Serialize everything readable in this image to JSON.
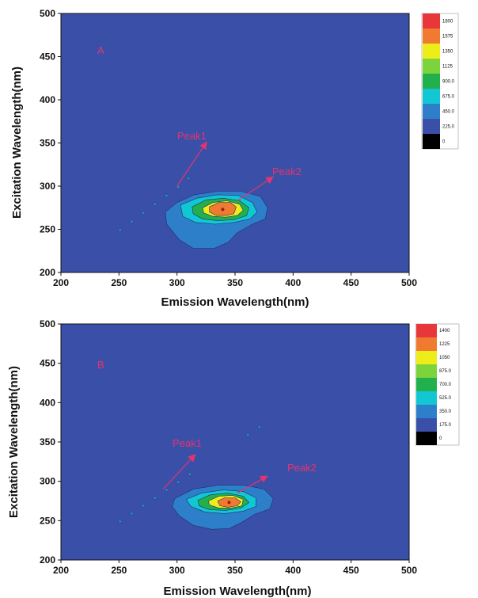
{
  "chart_data": [
    {
      "type": "heatmap",
      "panel_label": "A",
      "xlabel": "Emission Wavelength(nm)",
      "ylabel": "Excitation Wavelength(nm)",
      "xlim": [
        200,
        500
      ],
      "ylim": [
        200,
        500
      ],
      "x_ticks": [
        "200",
        "250",
        "300",
        "350",
        "400",
        "450",
        "500"
      ],
      "y_ticks": [
        "200",
        "250",
        "300",
        "350",
        "400",
        "450",
        "500"
      ],
      "legend_levels": [
        "1800",
        "1575",
        "1350",
        "1125",
        "900.0",
        "675.0",
        "450.0",
        "225.0",
        "0"
      ],
      "legend_placement": "right",
      "peaks": [
        {
          "label": "Peak1",
          "arrow_from": [
            325,
            350
          ],
          "arrow_to": [
            300,
            300
          ]
        },
        {
          "label": "Peak2",
          "arrow_from": [
            382,
            310
          ],
          "arrow_to": [
            352,
            283
          ]
        }
      ],
      "contours": [
        {
          "level": 225,
          "color": "#2e7fc9",
          "points": [
            [
              300,
              281
            ],
            [
              315,
              290
            ],
            [
              335,
              294
            ],
            [
              355,
              294
            ],
            [
              372,
              288
            ],
            [
              378,
              275
            ],
            [
              376,
              262
            ],
            [
              365,
              256
            ],
            [
              352,
              246
            ],
            [
              344,
              235
            ],
            [
              332,
              228
            ],
            [
              314,
              228
            ],
            [
              302,
              238
            ],
            [
              291,
              256
            ],
            [
              290,
              270
            ]
          ]
        },
        {
          "level": 450,
          "color": "#12c7d3",
          "points": [
            [
              303,
              278
            ],
            [
              317,
              286
            ],
            [
              335,
              290
            ],
            [
              353,
              289
            ],
            [
              365,
              281
            ],
            [
              369,
              270
            ],
            [
              363,
              262
            ],
            [
              349,
              258
            ],
            [
              333,
              256
            ],
            [
              316,
              258
            ],
            [
              305,
              265
            ]
          ]
        },
        {
          "level": 675,
          "color": "#22b04c",
          "points": [
            [
              313,
              276
            ],
            [
              325,
              284
            ],
            [
              340,
              286
            ],
            [
              354,
              283
            ],
            [
              362,
              275
            ],
            [
              360,
              266
            ],
            [
              349,
              261
            ],
            [
              335,
              260
            ],
            [
              322,
              262
            ],
            [
              314,
              268
            ]
          ]
        },
        {
          "level": 1125,
          "color": "#eded1a",
          "points": [
            [
              322,
              275
            ],
            [
              331,
              281
            ],
            [
              343,
              283
            ],
            [
              354,
              279
            ],
            [
              357,
              272
            ],
            [
              352,
              266
            ],
            [
              342,
              264
            ],
            [
              331,
              265
            ],
            [
              323,
              269
            ]
          ]
        },
        {
          "level": 1350,
          "color": "#f07a30",
          "points": [
            [
              328,
              276
            ],
            [
              336,
              281
            ],
            [
              346,
              281
            ],
            [
              351,
              276
            ],
            [
              349,
              268
            ],
            [
              343,
              266
            ],
            [
              334,
              266
            ],
            [
              328,
              270
            ]
          ]
        }
      ],
      "scatter_marks": [
        [
          251,
          249
        ],
        [
          261,
          259
        ],
        [
          271,
          269
        ],
        [
          281,
          279
        ],
        [
          291,
          289
        ],
        [
          301,
          299
        ],
        [
          310,
          309
        ]
      ]
    },
    {
      "type": "heatmap",
      "panel_label": "B",
      "xlabel": "Emission Wavelength(nm)",
      "ylabel": "Excitation Wavelength(nm)",
      "xlim": [
        200,
        500
      ],
      "ylim": [
        200,
        500
      ],
      "x_ticks": [
        "200",
        "250",
        "300",
        "350",
        "400",
        "450",
        "500"
      ],
      "y_ticks": [
        "200",
        "250",
        "300",
        "350",
        "400",
        "450",
        "500"
      ],
      "legend_levels": [
        "1400",
        "1225",
        "1050",
        "875.0",
        "700.0",
        "525.0",
        "350.0",
        "175.0",
        "0"
      ],
      "legend_placement": "right",
      "peaks": [
        {
          "label": "Peak1",
          "arrow_from": [
            315,
            333
          ],
          "arrow_to": [
            288,
            290
          ]
        },
        {
          "label": "Peak2",
          "arrow_from": [
            377,
            306
          ],
          "arrow_to": [
            352,
            285
          ]
        }
      ],
      "contours": [
        {
          "level": 175,
          "color": "#2e7fc9",
          "points": [
            [
              298,
              278
            ],
            [
              314,
              290
            ],
            [
              335,
              295
            ],
            [
              358,
              295
            ],
            [
              375,
              290
            ],
            [
              383,
              278
            ],
            [
              380,
              265
            ],
            [
              367,
              258
            ],
            [
              356,
              248
            ],
            [
              345,
              240
            ],
            [
              330,
              239
            ],
            [
              314,
              244
            ],
            [
              302,
              256
            ],
            [
              296,
              268
            ]
          ]
        },
        {
          "level": 350,
          "color": "#12c7d3",
          "points": [
            [
              308,
              277
            ],
            [
              321,
              285
            ],
            [
              340,
              289
            ],
            [
              357,
              287
            ],
            [
              368,
              279
            ],
            [
              368,
              268
            ],
            [
              357,
              262
            ],
            [
              341,
              259
            ],
            [
              324,
              261
            ],
            [
              312,
              268
            ]
          ]
        },
        {
          "level": 525,
          "color": "#22b04c",
          "points": [
            [
              318,
              276
            ],
            [
              329,
              283
            ],
            [
              344,
              285
            ],
            [
              357,
              281
            ],
            [
              362,
              273
            ],
            [
              355,
              266
            ],
            [
              342,
              263
            ],
            [
              328,
              264
            ],
            [
              319,
              269
            ]
          ]
        },
        {
          "level": 875,
          "color": "#eded1a",
          "points": [
            [
              327,
              275
            ],
            [
              336,
              281
            ],
            [
              348,
              282
            ],
            [
              357,
              277
            ],
            [
              356,
              269
            ],
            [
              347,
              266
            ],
            [
              336,
              266
            ],
            [
              328,
              270
            ]
          ]
        },
        {
          "level": 1050,
          "color": "#f07a30",
          "points": [
            [
              335,
              275
            ],
            [
              341,
              279
            ],
            [
              350,
              279
            ],
            [
              355,
              274
            ],
            [
              352,
              269
            ],
            [
              344,
              267
            ],
            [
              337,
              269
            ]
          ]
        }
      ],
      "scatter_marks": [
        [
          251,
          249
        ],
        [
          261,
          259
        ],
        [
          271,
          269
        ],
        [
          281,
          279
        ],
        [
          291,
          289
        ],
        [
          301,
          299
        ],
        [
          311,
          309
        ],
        [
          361,
          359
        ],
        [
          371,
          369
        ]
      ]
    }
  ],
  "colors": {
    "background": "#3a50a8",
    "scale": [
      "#e8373a",
      "#f07a30",
      "#eded1a",
      "#7cd33b",
      "#22b04c",
      "#12c7d3",
      "#2e7fc9",
      "#3a50a8",
      "#000000"
    ],
    "annotation": "#e6326e"
  }
}
